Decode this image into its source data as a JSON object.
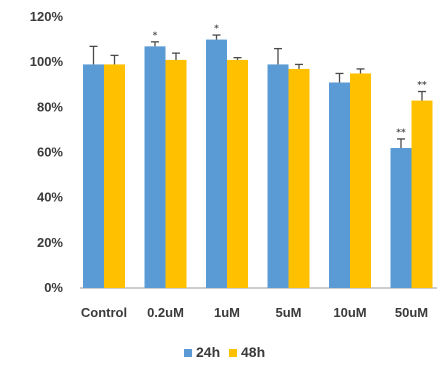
{
  "chart_data": {
    "type": "bar",
    "title": "",
    "xlabel": "",
    "ylabel": "",
    "categories": [
      "Control",
      "0.2uM",
      "1uM",
      "5uM",
      "10uM",
      "50uM"
    ],
    "series": [
      {
        "name": "24h",
        "color": "#5b9bd5",
        "values": [
          99,
          107,
          110,
          99,
          91,
          62
        ],
        "errors": [
          8,
          2,
          2,
          7,
          4,
          4
        ],
        "annotations": [
          "",
          "*",
          "*",
          "",
          "",
          "**"
        ]
      },
      {
        "name": "48h",
        "color": "#ffc000",
        "values": [
          99,
          101,
          101,
          97,
          95,
          83
        ],
        "errors": [
          4,
          3,
          1,
          2,
          2,
          4
        ],
        "annotations": [
          "",
          "",
          "",
          "",
          "",
          "**"
        ]
      }
    ],
    "yticks": [
      "0%",
      "20%",
      "40%",
      "60%",
      "80%",
      "100%",
      "120%"
    ],
    "ylim": [
      0,
      120
    ],
    "grid": false,
    "legend": "bottom-center"
  }
}
